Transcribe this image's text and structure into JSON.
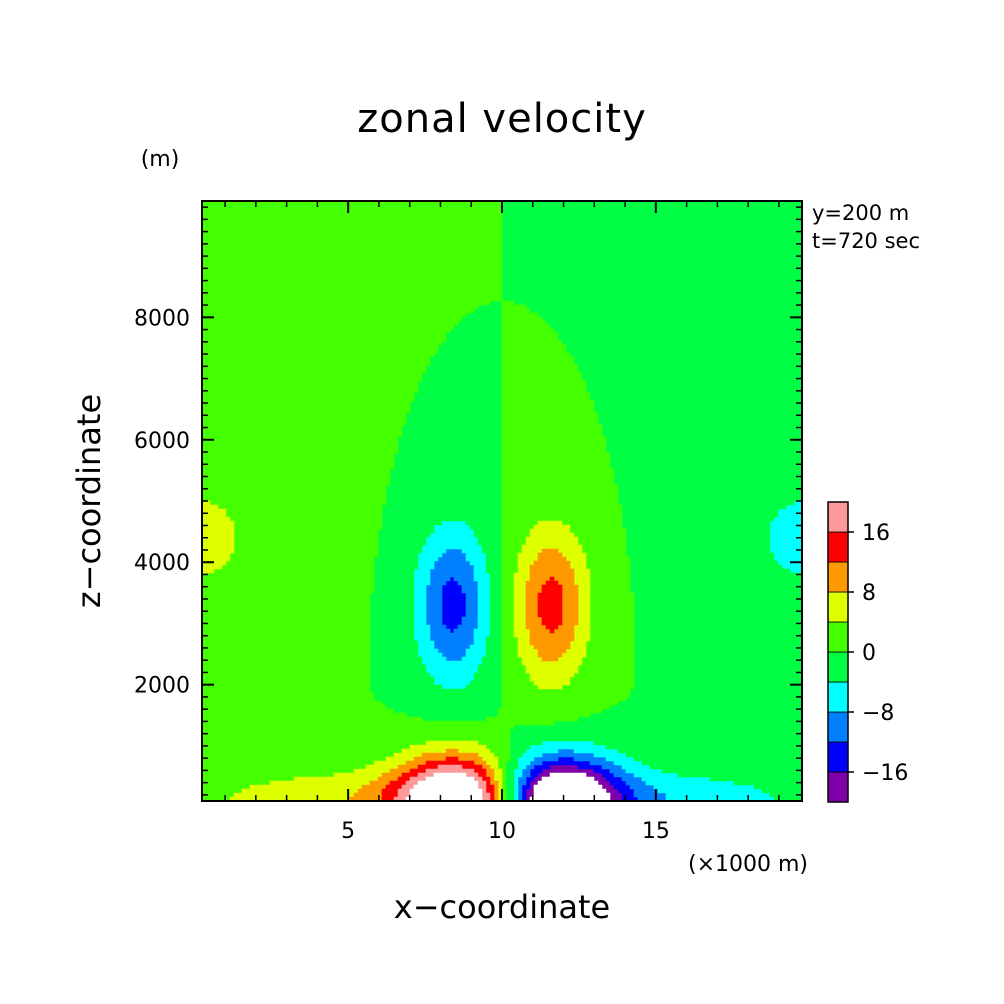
{
  "chart_data": {
    "type": "heatmap",
    "title": "zonal velocity",
    "xlabel": "x−coordinate",
    "ylabel": "z−coordinate",
    "x_unit": "(×1000 m)",
    "y_unit": "(m)",
    "xlim": [
      0.25,
      19.75
    ],
    "ylim": [
      100,
      9900
    ],
    "x_ticks": [
      {
        "value": 5,
        "label": "5"
      },
      {
        "value": 10,
        "label": "10"
      },
      {
        "value": 15,
        "label": "15"
      }
    ],
    "y_ticks": [
      {
        "value": 2000,
        "label": "2000"
      },
      {
        "value": 4000,
        "label": "4000"
      },
      {
        "value": 6000,
        "label": "6000"
      },
      {
        "value": 8000,
        "label": "8000"
      }
    ],
    "annotations": [
      "y=200 m",
      "t=720 sec"
    ],
    "colorbar": {
      "levels": [
        -20,
        -16,
        -12,
        -8,
        -4,
        0,
        4,
        8,
        12,
        16,
        20
      ],
      "colors": [
        "#7f00a8",
        "#0000ff",
        "#0080ff",
        "#00ffff",
        "#00ff44",
        "#44ff00",
        "#ddff00",
        "#ff9900",
        "#ff0000",
        "#ff9999"
      ],
      "tick_labels": [
        {
          "value": -16,
          "label": "−16"
        },
        {
          "value": -8,
          "label": "−8"
        },
        {
          "value": 0,
          "label": "0"
        },
        {
          "value": 8,
          "label": "8"
        },
        {
          "value": 16,
          "label": "16"
        }
      ]
    },
    "field": {
      "background_value": 0,
      "features": [
        {
          "name": "negative-upper-lobe",
          "x": 8.4,
          "z": 3300,
          "amplitude": -13.5,
          "sx": 0.85,
          "sz": 900
        },
        {
          "name": "positive-upper-lobe",
          "x": 11.6,
          "z": 3300,
          "amplitude": 13.5,
          "sx": 0.85,
          "sz": 900
        },
        {
          "name": "positive-surface-jet",
          "x": 8.6,
          "z": 100,
          "amplitude": 30,
          "sx": 1.4,
          "sz": 520
        },
        {
          "name": "negative-surface-jet",
          "x": 11.8,
          "z": 100,
          "amplitude": -30,
          "sx": 1.4,
          "sz": 520
        },
        {
          "name": "positive-surface-tail",
          "x": 5,
          "z": 100,
          "amplitude": 7,
          "sx": 3.6,
          "sz": 380
        },
        {
          "name": "negative-surface-tail",
          "x": 15,
          "z": 100,
          "amplitude": -7,
          "sx": 3.6,
          "sz": 380
        },
        {
          "name": "left-edge-positive",
          "x": 0.3,
          "z": 4400,
          "amplitude": 4.5,
          "sx": 2.1,
          "sz": 1200
        },
        {
          "name": "right-edge-negative",
          "x": 19.7,
          "z": 4400,
          "amplitude": -4.5,
          "sx": 2.1,
          "sz": 1200
        }
      ]
    }
  }
}
